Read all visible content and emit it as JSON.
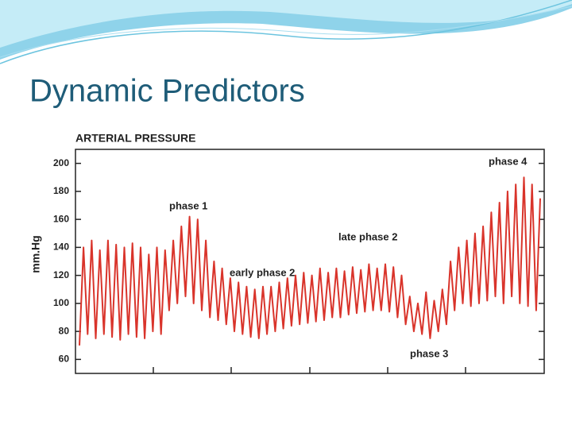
{
  "slide": {
    "title": "Dynamic Predictors"
  },
  "chart_data": {
    "type": "line",
    "title": "ARTERIAL PRESSURE",
    "y_label": "mm.Hg",
    "color": "#d9342b",
    "values": [
      70,
      140,
      78,
      145,
      75,
      138,
      78,
      145,
      76,
      142,
      74,
      140,
      78,
      143,
      76,
      140,
      75,
      135,
      80,
      140,
      78,
      138,
      95,
      145,
      100,
      155,
      105,
      162,
      100,
      160,
      95,
      145,
      90,
      130,
      88,
      125,
      85,
      118,
      80,
      115,
      78,
      112,
      76,
      110,
      75,
      112,
      78,
      112,
      80,
      115,
      82,
      118,
      84,
      120,
      85,
      122,
      86,
      120,
      87,
      125,
      88,
      122,
      90,
      125,
      90,
      123,
      92,
      126,
      93,
      124,
      94,
      128,
      95,
      125,
      95,
      128,
      94,
      126,
      90,
      120,
      85,
      105,
      80,
      100,
      78,
      108,
      75,
      102,
      80,
      110,
      85,
      130,
      95,
      140,
      100,
      145,
      98,
      150,
      100,
      155,
      102,
      165,
      105,
      172,
      100,
      180,
      105,
      185,
      100,
      190,
      98,
      185,
      95,
      175
    ],
    "ylim": [
      50,
      210
    ],
    "yticks": [
      60,
      80,
      100,
      120,
      140,
      160,
      180,
      200
    ],
    "annotations": [
      "phase 4",
      "phase 1",
      "late phase 2",
      "early phase 2",
      "phase 3"
    ]
  }
}
